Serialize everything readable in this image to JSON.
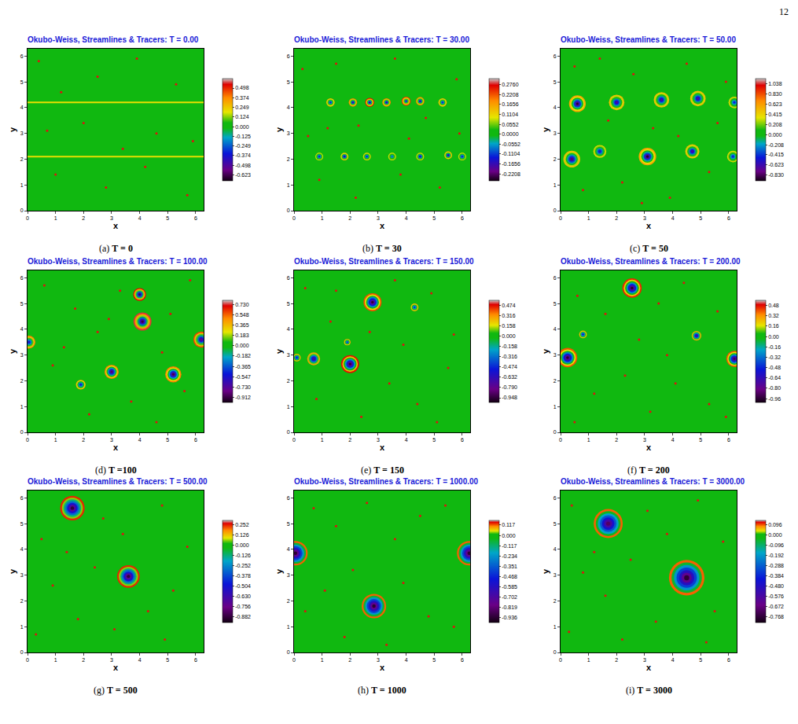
{
  "page_number": "12",
  "chart_data": [
    {
      "type": "heatmap",
      "title": "Okubo-Weiss, Streamlines & Tracers: T = 0.00",
      "letter": "(a)",
      "caption": "T = 0",
      "xlabel": "x",
      "ylabel": "y",
      "xlim": [
        0,
        6.283
      ],
      "ylim": [
        0,
        6.283
      ],
      "xticks": [
        0,
        1,
        2,
        3,
        4,
        5,
        6
      ],
      "yticks": [
        0,
        1,
        2,
        3,
        4,
        5,
        6
      ],
      "background": 0,
      "colorbar": {
        "range": [
          -0.7,
          0.62
        ],
        "ticks": [
          0.498,
          0.374,
          0.249,
          0.124,
          {
            "value": 0,
            "label": "0.000"
          },
          -0.125,
          -0.249,
          -0.374,
          -0.498,
          -0.623
        ]
      },
      "bands": [
        {
          "y": 4.2,
          "value": 0.2
        },
        {
          "y": 2.1,
          "value": 0.2
        }
      ],
      "vortices": [],
      "tracers": {
        "x": [
          0.4,
          1.2,
          2.0,
          2.5,
          3.9,
          4.6,
          5.3,
          1.0,
          2.8,
          4.2,
          5.7,
          5.9,
          0.7,
          3.4
        ],
        "y": [
          5.8,
          4.6,
          3.4,
          5.2,
          5.9,
          3.0,
          4.9,
          1.4,
          0.9,
          1.7,
          0.6,
          2.7,
          3.1,
          2.4
        ]
      }
    },
    {
      "type": "heatmap",
      "title": "Okubo-Weiss, Streamlines & Tracers: T = 30.00",
      "letter": "(b)",
      "caption": "T = 30",
      "xlabel": "x",
      "ylabel": "y",
      "xlim": [
        0,
        6.283
      ],
      "ylim": [
        0,
        6.283
      ],
      "xticks": [
        0,
        1,
        2,
        3,
        4,
        5,
        6
      ],
      "yticks": [
        0,
        1,
        2,
        3,
        4,
        5,
        6
      ],
      "background": 0,
      "colorbar": {
        "range": [
          -0.26,
          0.31
        ],
        "ticks": [
          {
            "value": 0.276,
            "label": "0.2760"
          },
          0.2208,
          0.1656,
          0.1104,
          0.0552,
          {
            "value": 0,
            "label": "0.0000"
          },
          -0.0552,
          -0.1104,
          -0.1656,
          -0.2208
        ]
      },
      "bands": [],
      "vortices": [
        {
          "x": 1.3,
          "y": 4.2,
          "r": 0.13,
          "core": -0.15,
          "ring": 0.15
        },
        {
          "x": 2.1,
          "y": 4.2,
          "r": 0.13,
          "core": -0.2,
          "ring": 0.2
        },
        {
          "x": 2.7,
          "y": 4.2,
          "r": 0.14,
          "core": -0.22,
          "ring": 0.27
        },
        {
          "x": 3.3,
          "y": 4.2,
          "r": 0.13,
          "core": -0.2,
          "ring": 0.2
        },
        {
          "x": 4.0,
          "y": 4.25,
          "r": 0.14,
          "core": -0.15,
          "ring": 0.25
        },
        {
          "x": 4.5,
          "y": 4.25,
          "r": 0.13,
          "core": -0.2,
          "ring": 0.2
        },
        {
          "x": 5.3,
          "y": 4.2,
          "r": 0.13,
          "core": -0.15,
          "ring": 0.15
        },
        {
          "x": 0.9,
          "y": 2.1,
          "r": 0.12,
          "core": -0.15,
          "ring": 0.1
        },
        {
          "x": 1.8,
          "y": 2.1,
          "r": 0.12,
          "core": -0.2,
          "ring": 0.15
        },
        {
          "x": 2.6,
          "y": 2.1,
          "r": 0.12,
          "core": -0.15,
          "ring": 0.12
        },
        {
          "x": 3.5,
          "y": 2.1,
          "r": 0.12,
          "core": -0.1,
          "ring": 0.1
        },
        {
          "x": 4.5,
          "y": 2.1,
          "r": 0.12,
          "core": -0.18,
          "ring": 0.12
        },
        {
          "x": 5.5,
          "y": 2.15,
          "r": 0.12,
          "core": -0.2,
          "ring": 0.15
        },
        {
          "x": 6.0,
          "y": 2.1,
          "r": 0.12,
          "core": -0.15,
          "ring": 0.1
        }
      ],
      "tracers": {
        "x": [
          0.3,
          1.5,
          2.3,
          3.6,
          4.7,
          5.8,
          0.9,
          2.2,
          3.8,
          5.2,
          5.9,
          1.2,
          4.1,
          0.5
        ],
        "y": [
          5.5,
          5.7,
          3.3,
          5.9,
          3.6,
          5.1,
          1.2,
          0.5,
          1.4,
          0.9,
          3.0,
          3.2,
          2.8,
          2.9
        ]
      }
    },
    {
      "type": "heatmap",
      "title": "Okubo-Weiss, Streamlines & Tracers: T = 50.00",
      "letter": "(c)",
      "caption": "T = 50",
      "xlabel": "x",
      "ylabel": "y",
      "xlim": [
        0,
        6.283
      ],
      "ylim": [
        0,
        6.283
      ],
      "xticks": [
        0,
        1,
        2,
        3,
        4,
        5,
        6
      ],
      "yticks": [
        0,
        1,
        2,
        3,
        4,
        5,
        6
      ],
      "background": 0,
      "colorbar": {
        "range": [
          -0.95,
          1.15
        ],
        "ticks": [
          1.038,
          {
            "value": 0.83,
            "label": "0.830"
          },
          0.623,
          0.415,
          0.208,
          {
            "value": 0,
            "label": "0.000"
          },
          -0.208,
          -0.415,
          -0.623,
          {
            "value": -0.83,
            "label": "-0.830"
          }
        ]
      },
      "bands": [],
      "vortices": [
        {
          "x": 0.6,
          "y": 4.15,
          "r": 0.26,
          "core": -0.9,
          "ring": 0.6
        },
        {
          "x": 2.0,
          "y": 4.2,
          "r": 0.24,
          "core": -0.7,
          "ring": 0.5
        },
        {
          "x": 3.6,
          "y": 4.3,
          "r": 0.24,
          "core": -0.7,
          "ring": 0.5
        },
        {
          "x": 4.9,
          "y": 4.35,
          "r": 0.24,
          "core": -0.7,
          "ring": 0.5
        },
        {
          "x": 6.2,
          "y": 4.2,
          "r": 0.18,
          "core": -0.5,
          "ring": 0.4
        },
        {
          "x": 0.4,
          "y": 2.0,
          "r": 0.26,
          "core": -0.8,
          "ring": 0.5
        },
        {
          "x": 1.4,
          "y": 2.3,
          "r": 0.2,
          "core": -0.6,
          "ring": 0.4
        },
        {
          "x": 3.1,
          "y": 2.1,
          "r": 0.27,
          "core": -0.9,
          "ring": 0.6
        },
        {
          "x": 4.7,
          "y": 2.3,
          "r": 0.22,
          "core": -0.7,
          "ring": 0.5
        },
        {
          "x": 6.15,
          "y": 2.1,
          "r": 0.18,
          "core": -0.5,
          "ring": 0.4
        }
      ],
      "tracers": {
        "x": [
          0.5,
          1.4,
          2.6,
          3.3,
          4.5,
          5.6,
          0.8,
          2.2,
          3.9,
          5.3,
          1.7,
          4.2,
          5.9,
          2.9
        ],
        "y": [
          5.6,
          5.9,
          5.3,
          3.2,
          5.7,
          3.4,
          0.8,
          1.1,
          0.5,
          1.5,
          3.5,
          2.9,
          5.0,
          0.3
        ]
      }
    },
    {
      "type": "heatmap",
      "title": "Okubo-Weiss, Streamlines & Tracers: T = 100.00",
      "letter": "(d)",
      "caption": "T =100",
      "xlabel": "x",
      "ylabel": "y",
      "xlim": [
        0,
        6.283
      ],
      "ylim": [
        0,
        6.283
      ],
      "xticks": [
        0,
        1,
        2,
        3,
        4,
        5,
        6
      ],
      "yticks": [
        0,
        1,
        2,
        3,
        4,
        5,
        6
      ],
      "background": 0,
      "colorbar": {
        "range": [
          -1.0,
          0.8
        ],
        "ticks": [
          {
            "value": 0.73,
            "label": "0.730"
          },
          0.548,
          0.365,
          0.183,
          {
            "value": 0,
            "label": "0.000"
          },
          -0.182,
          -0.365,
          -0.547,
          {
            "value": -0.73,
            "label": "-0.730"
          },
          -0.912
        ]
      },
      "bands": [],
      "vortices": [
        {
          "x": 4.0,
          "y": 5.35,
          "r": 0.2,
          "core": -0.9,
          "ring": 0.7
        },
        {
          "x": 4.1,
          "y": 4.3,
          "r": 0.28,
          "core": -0.91,
          "ring": 0.73
        },
        {
          "x": 6.2,
          "y": 3.6,
          "r": 0.25,
          "core": -0.8,
          "ring": 0.6
        },
        {
          "x": 0.05,
          "y": 3.5,
          "r": 0.2,
          "core": -0.6,
          "ring": 0.5
        },
        {
          "x": 3.0,
          "y": 2.35,
          "r": 0.22,
          "core": -0.85,
          "ring": 0.5
        },
        {
          "x": 5.2,
          "y": 2.25,
          "r": 0.25,
          "core": -0.9,
          "ring": 0.5
        },
        {
          "x": 1.9,
          "y": 1.85,
          "r": 0.15,
          "core": -0.6,
          "ring": 0.4
        }
      ],
      "tracers": {
        "x": [
          0.6,
          1.7,
          2.5,
          3.3,
          5.1,
          5.8,
          0.9,
          2.2,
          3.7,
          4.6,
          5.6,
          1.3,
          2.9,
          4.8
        ],
        "y": [
          5.7,
          4.8,
          3.9,
          5.5,
          4.6,
          5.9,
          2.6,
          0.7,
          1.2,
          0.4,
          1.6,
          3.3,
          4.4,
          3.1
        ]
      }
    },
    {
      "type": "heatmap",
      "title": "Okubo-Weiss, Streamlines & Tracers: T = 150.00",
      "letter": "(e)",
      "caption": "T = 150",
      "xlabel": "x",
      "ylabel": "y",
      "xlim": [
        0,
        6.283
      ],
      "ylim": [
        0,
        6.283
      ],
      "xticks": [
        0,
        1,
        2,
        3,
        4,
        5,
        6
      ],
      "yticks": [
        0,
        1,
        2,
        3,
        4,
        5,
        6
      ],
      "background": 0,
      "colorbar": {
        "range": [
          -1.02,
          0.55
        ],
        "ticks": [
          0.474,
          0.316,
          0.158,
          {
            "value": 0,
            "label": "0.000"
          },
          -0.158,
          -0.316,
          -0.474,
          -0.632,
          {
            "value": -0.79,
            "label": "-0.790"
          },
          -0.948
        ]
      },
      "bands": [],
      "vortices": [
        {
          "x": 2.8,
          "y": 5.05,
          "r": 0.28,
          "core": -0.95,
          "ring": 0.4
        },
        {
          "x": 4.3,
          "y": 4.85,
          "r": 0.12,
          "core": -0.5,
          "ring": 0.3
        },
        {
          "x": 2.0,
          "y": 2.65,
          "r": 0.28,
          "core": -0.95,
          "ring": 0.47
        },
        {
          "x": 1.9,
          "y": 3.5,
          "r": 0.1,
          "core": -0.5,
          "ring": 0.3
        },
        {
          "x": 0.7,
          "y": 2.85,
          "r": 0.2,
          "core": -0.8,
          "ring": 0.3
        },
        {
          "x": 0.1,
          "y": 2.9,
          "r": 0.12,
          "core": -0.6,
          "ring": 0.3
        }
      ],
      "tracers": {
        "x": [
          0.4,
          1.3,
          3.6,
          4.9,
          5.7,
          0.8,
          2.4,
          3.4,
          4.4,
          5.5,
          1.5,
          3.9,
          5.1,
          2.7
        ],
        "y": [
          5.6,
          4.3,
          5.9,
          5.4,
          3.8,
          1.3,
          0.6,
          1.9,
          1.1,
          2.5,
          5.5,
          3.4,
          0.4,
          3.9
        ]
      }
    },
    {
      "type": "heatmap",
      "title": "Okubo-Weiss, Streamlines & Tracers: T = 200.00",
      "letter": "(f)",
      "caption": "T = 200",
      "xlabel": "x",
      "ylabel": "y",
      "xlim": [
        0,
        6.283
      ],
      "ylim": [
        0,
        6.283
      ],
      "xticks": [
        0,
        1,
        2,
        3,
        4,
        5,
        6
      ],
      "yticks": [
        0,
        1,
        2,
        3,
        4,
        5,
        6
      ],
      "background": 0,
      "colorbar": {
        "range": [
          -1.02,
          0.56
        ],
        "ticks": [
          0.48,
          0.32,
          0.16,
          {
            "value": 0,
            "label": "0.00"
          },
          -0.16,
          -0.32,
          -0.48,
          -0.64,
          {
            "value": -0.8,
            "label": "-0.80"
          },
          -0.96
        ]
      },
      "bands": [],
      "vortices": [
        {
          "x": 2.55,
          "y": 5.6,
          "r": 0.3,
          "core": -0.96,
          "ring": 0.45
        },
        {
          "x": 0.25,
          "y": 2.9,
          "r": 0.3,
          "core": -0.96,
          "ring": 0.4
        },
        {
          "x": 0.8,
          "y": 3.8,
          "r": 0.12,
          "core": -0.6,
          "ring": 0.3
        },
        {
          "x": 4.85,
          "y": 3.75,
          "r": 0.15,
          "core": -0.8,
          "ring": 0.3
        },
        {
          "x": 6.2,
          "y": 2.85,
          "r": 0.25,
          "core": -0.9,
          "ring": 0.4
        }
      ],
      "tracers": {
        "x": [
          0.6,
          1.6,
          3.5,
          4.4,
          5.6,
          1.2,
          2.3,
          3.2,
          4.1,
          5.3,
          0.5,
          2.8,
          3.8,
          5.9
        ],
        "y": [
          5.3,
          4.6,
          5.0,
          5.8,
          4.7,
          1.5,
          2.2,
          0.8,
          1.9,
          1.1,
          0.4,
          3.6,
          3.0,
          0.6
        ]
      }
    },
    {
      "type": "heatmap",
      "title": "Okubo-Weiss, Streamlines & Tracers: T = 500.00",
      "letter": "(g)",
      "caption": "T = 500",
      "xlabel": "x",
      "ylabel": "y",
      "xlim": [
        0,
        6.283
      ],
      "ylim": [
        0,
        6.283
      ],
      "xticks": [
        0,
        1,
        2,
        3,
        4,
        5,
        6
      ],
      "yticks": [
        0,
        1,
        2,
        3,
        4,
        5,
        6
      ],
      "background": 0,
      "colorbar": {
        "range": [
          -0.95,
          0.31
        ],
        "ticks": [
          0.252,
          0.126,
          {
            "value": 0,
            "label": "0.000"
          },
          -0.126,
          -0.252,
          -0.378,
          -0.504,
          {
            "value": -0.63,
            "label": "-0.630"
          },
          -0.756,
          -0.882
        ]
      },
      "bands": [],
      "vortices": [
        {
          "x": 1.6,
          "y": 5.6,
          "r": 0.38,
          "core": -0.88,
          "ring": 0.25
        },
        {
          "x": 3.6,
          "y": 2.95,
          "r": 0.35,
          "core": -0.88,
          "ring": 0.25
        }
      ],
      "tracers": {
        "x": [
          0.5,
          2.7,
          3.4,
          4.8,
          5.7,
          0.9,
          1.8,
          2.4,
          4.3,
          5.2,
          0.3,
          1.4,
          4.9,
          3.1
        ],
        "y": [
          4.4,
          5.2,
          4.6,
          5.7,
          4.1,
          2.6,
          1.3,
          3.3,
          1.6,
          2.4,
          0.7,
          3.9,
          0.5,
          0.9
        ]
      }
    },
    {
      "type": "heatmap",
      "title": "Okubo-Weiss, Streamlines & Tracers: T = 1000.00",
      "letter": "(h)",
      "caption": "T = 1000",
      "xlabel": "x",
      "ylabel": "y",
      "xlim": [
        0,
        6.283
      ],
      "ylim": [
        0,
        6.283
      ],
      "xticks": [
        0,
        1,
        2,
        3,
        4,
        5,
        6
      ],
      "yticks": [
        0,
        1,
        2,
        3,
        4,
        5,
        6
      ],
      "background": 0,
      "colorbar": {
        "range": [
          -0.99,
          0.17
        ],
        "ticks": [
          0.117,
          {
            "value": 0,
            "label": "0.000"
          },
          -0.117,
          -0.234,
          -0.351,
          -0.468,
          -0.585,
          -0.702,
          -0.819,
          -0.936
        ]
      },
      "bands": [],
      "vortices": [
        {
          "x": 2.85,
          "y": 1.8,
          "r": 0.38,
          "core": -0.93,
          "ring": 0.117
        },
        {
          "x": 0.05,
          "y": 3.85,
          "r": 0.38,
          "core": -0.93,
          "ring": 0.117
        },
        {
          "x": 6.25,
          "y": 3.85,
          "r": 0.38,
          "core": -0.93,
          "ring": 0.117
        }
      ],
      "tracers": {
        "x": [
          0.7,
          1.5,
          2.6,
          3.6,
          4.5,
          5.4,
          1.1,
          2.1,
          3.9,
          4.8,
          5.7,
          1.8,
          3.3,
          0.4
        ],
        "y": [
          5.6,
          4.9,
          5.8,
          4.4,
          5.3,
          5.7,
          2.4,
          3.2,
          2.7,
          1.4,
          1.0,
          0.6,
          0.3,
          1.6
        ]
      }
    },
    {
      "type": "heatmap",
      "title": "Okubo-Weiss, Streamlines & Tracers: T = 3000.00",
      "letter": "(i)",
      "caption": "T = 3000",
      "xlabel": "x",
      "ylabel": "y",
      "xlim": [
        0,
        6.283
      ],
      "ylim": [
        0,
        6.283
      ],
      "xticks": [
        0,
        1,
        2,
        3,
        4,
        5,
        6
      ],
      "yticks": [
        0,
        1,
        2,
        3,
        4,
        5,
        6
      ],
      "background": 0,
      "colorbar": {
        "range": [
          -0.82,
          0.14
        ],
        "ticks": [
          0.096,
          {
            "value": 0,
            "label": "0.000"
          },
          -0.096,
          -0.192,
          -0.288,
          -0.384,
          {
            "value": -0.48,
            "label": "-0.480"
          },
          -0.576,
          -0.672,
          -0.768
        ]
      },
      "bands": [],
      "vortices": [
        {
          "x": 1.7,
          "y": 5.0,
          "r": 0.45,
          "core": -0.7,
          "ring": 0.096
        },
        {
          "x": 4.5,
          "y": 2.9,
          "r": 0.55,
          "core": -0.77,
          "ring": 0.096
        }
      ],
      "tracers": {
        "x": [
          0.4,
          3.1,
          3.8,
          4.9,
          5.8,
          0.8,
          1.6,
          2.5,
          3.4,
          5.5,
          0.3,
          2.2,
          5.2,
          1.2
        ],
        "y": [
          5.7,
          5.5,
          4.6,
          5.9,
          4.3,
          3.1,
          2.2,
          3.6,
          1.2,
          1.6,
          0.8,
          0.5,
          0.4,
          3.9
        ]
      }
    }
  ]
}
